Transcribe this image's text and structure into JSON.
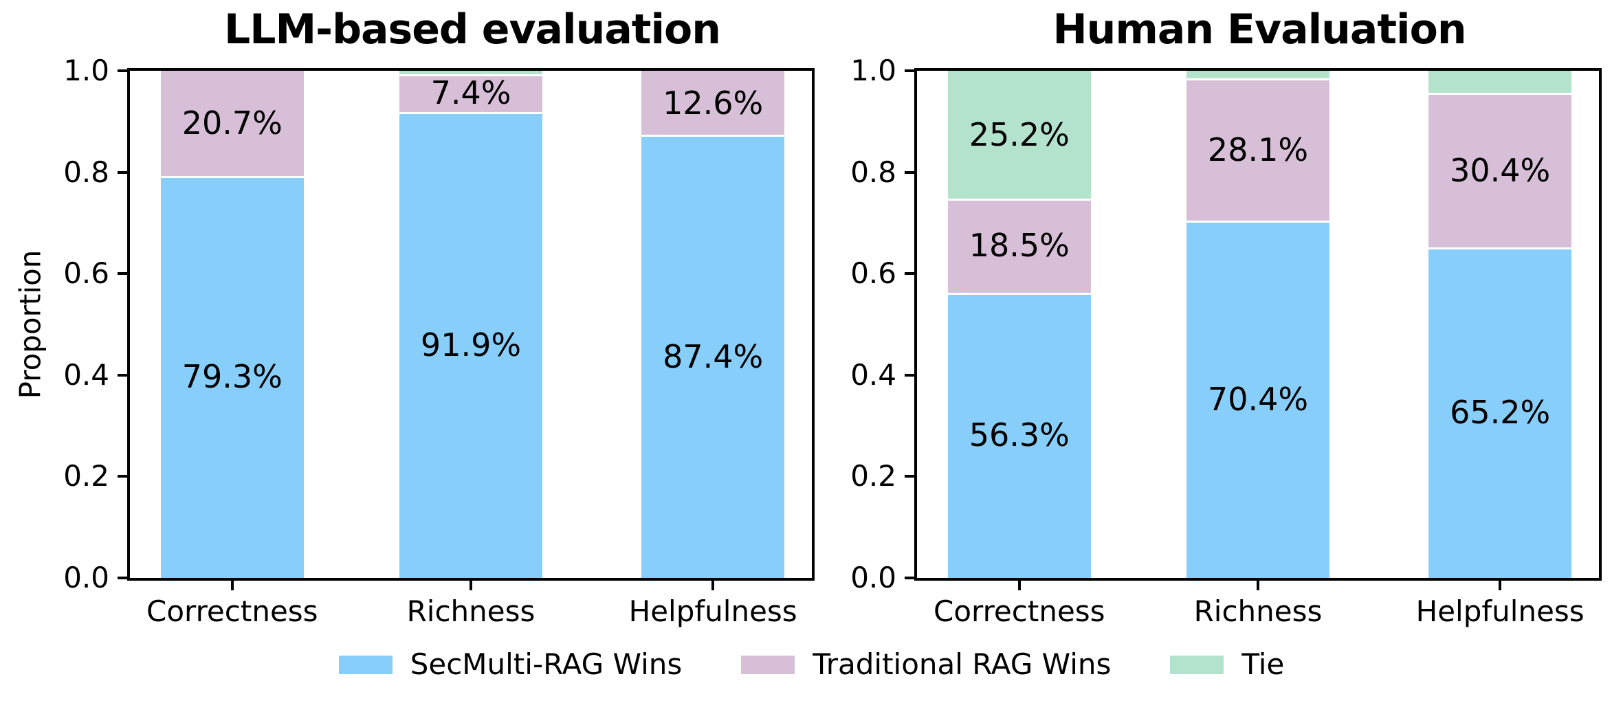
{
  "chart_data": [
    {
      "type": "bar",
      "stacked": true,
      "title": "LLM-based evaluation",
      "ylabel": "Proportion",
      "xlabel": "",
      "ylim": [
        0,
        1
      ],
      "grid": false,
      "yticks": [
        "1.0",
        "0.8",
        "0.6",
        "0.4",
        "0.2",
        "0.0"
      ],
      "categories": [
        "Correctness",
        "Richness",
        "Helpfulness"
      ],
      "series": [
        {
          "name": "SecMulti-RAG Wins",
          "color": "#87cefa",
          "values": [
            79.3,
            91.9,
            87.4
          ],
          "labels": [
            "79.3%",
            "91.9%",
            "87.4%"
          ]
        },
        {
          "name": "Traditional RAG Wins",
          "color": "#d8bfd8",
          "values": [
            20.7,
            7.4,
            12.6
          ],
          "labels": [
            "20.7%",
            "7.4%",
            "12.6%"
          ]
        },
        {
          "name": "Tie",
          "color": "#b3e2cd",
          "values": [
            0,
            0.7,
            0
          ],
          "labels": [
            null,
            null,
            null
          ]
        }
      ]
    },
    {
      "type": "bar",
      "stacked": true,
      "title": "Human Evaluation",
      "ylabel": "",
      "xlabel": "",
      "ylim": [
        0,
        1
      ],
      "grid": false,
      "yticks": [
        "1.0",
        "0.8",
        "0.6",
        "0.4",
        "0.2",
        "0.0"
      ],
      "categories": [
        "Correctness",
        "Richness",
        "Helpfulness"
      ],
      "series": [
        {
          "name": "SecMulti-RAG Wins",
          "color": "#87cefa",
          "values": [
            56.3,
            70.4,
            65.2
          ],
          "labels": [
            "56.3%",
            "70.4%",
            "65.2%"
          ]
        },
        {
          "name": "Traditional RAG Wins",
          "color": "#d8bfd8",
          "values": [
            18.5,
            28.1,
            30.4
          ],
          "labels": [
            "18.5%",
            "28.1%",
            "30.4%"
          ]
        },
        {
          "name": "Tie",
          "color": "#b3e2cd",
          "values": [
            25.2,
            1.5,
            4.4
          ],
          "labels": [
            "25.2%",
            null,
            null
          ]
        }
      ]
    }
  ],
  "legend": {
    "position": "bottom-center",
    "items": [
      {
        "label": "SecMulti-RAG Wins",
        "color": "#87cefa"
      },
      {
        "label": "Traditional RAG Wins",
        "color": "#d8bfd8"
      },
      {
        "label": "Tie",
        "color": "#b3e2cd"
      }
    ]
  }
}
